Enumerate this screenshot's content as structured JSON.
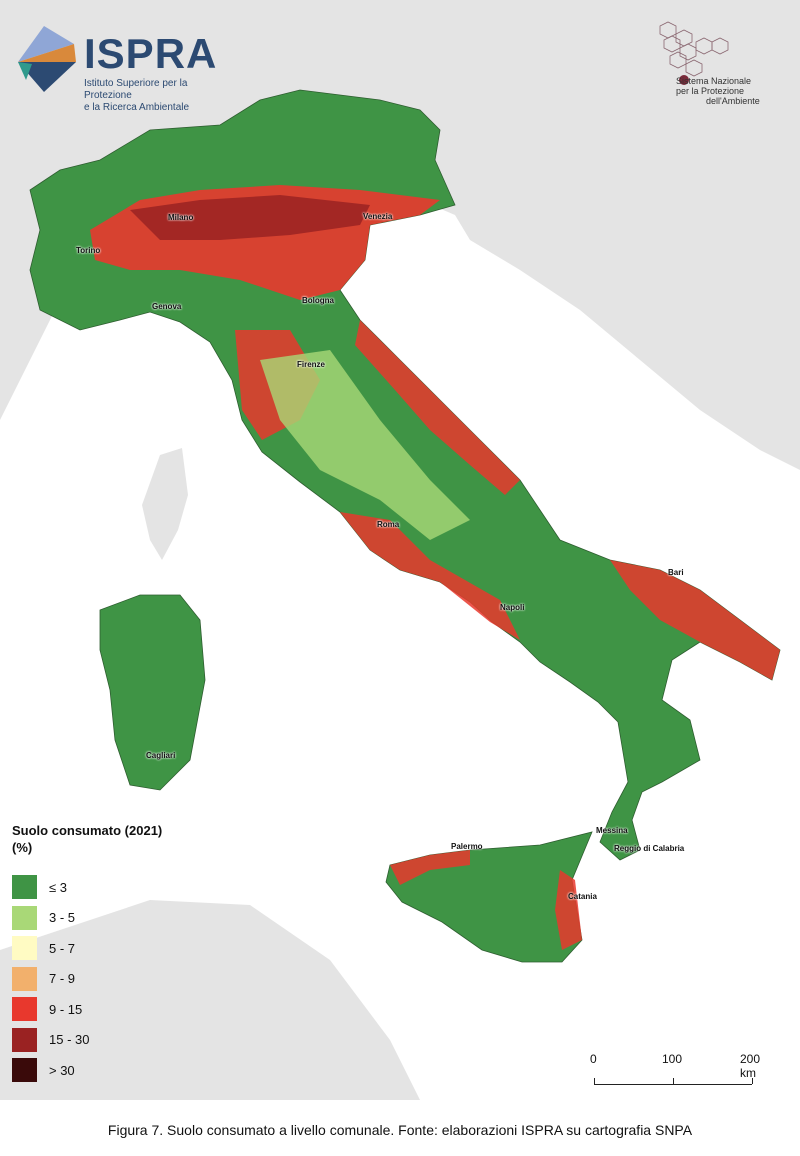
{
  "header": {
    "ispra_logo": {
      "name": "ISPRA",
      "subtitle_line1": "Istituto Superiore per la Protezione",
      "subtitle_line2": "e la Ricerca Ambientale"
    },
    "snpa_logo": {
      "line1": "Sistema Nazionale",
      "line2": "per la Protezione",
      "line3": "dell'Ambiente"
    }
  },
  "map": {
    "cities": [
      "Milano",
      "Venezia",
      "Torino",
      "Genova",
      "Bologna",
      "Firenze",
      "Roma",
      "Napoli",
      "Bari",
      "Cagliari",
      "Palermo",
      "Messina",
      "Reggio di Calabria",
      "Catania"
    ],
    "colors": {
      "sea": "#ffffff",
      "foreign_land": "#e4e4e4"
    }
  },
  "legend": {
    "title": "Suolo consumato (2021)",
    "unit": "(%)",
    "items": [
      {
        "label": "≤ 3",
        "color": "#3f9445"
      },
      {
        "label": "3 - 5",
        "color": "#a9d877"
      },
      {
        "label": "5 - 7",
        "color": "#fffbc3"
      },
      {
        "label": "7 - 9",
        "color": "#f2b06c"
      },
      {
        "label": "9 - 15",
        "color": "#e8382d"
      },
      {
        "label": "15 - 30",
        "color": "#9a2222"
      },
      {
        "label": "> 30",
        "color": "#3a0a0a"
      }
    ]
  },
  "scale_bar": {
    "labels": [
      "0",
      "100",
      "200 km"
    ]
  },
  "caption": "Figura 7. Suolo consumato a livello comunale. Fonte: elaborazioni ISPRA su cartografia SNPA"
}
